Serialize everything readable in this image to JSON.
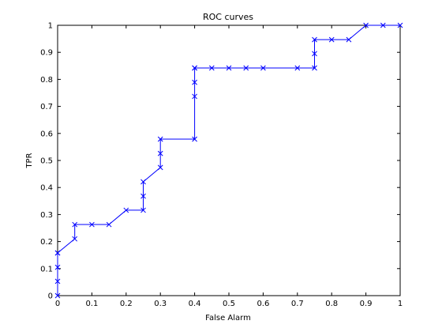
{
  "chart_data": {
    "type": "line",
    "title": "ROC curves",
    "xlabel": "False Alarm",
    "ylabel": "TPR",
    "xlim": [
      0,
      1
    ],
    "ylim": [
      0,
      1
    ],
    "grid": false,
    "x_ticks": [
      "0",
      "0.1",
      "0.2",
      "0.3",
      "0.4",
      "0.5",
      "0.6",
      "0.7",
      "0.8",
      "0.9",
      "1"
    ],
    "y_ticks": [
      "0",
      "0.1",
      "0.2",
      "0.3",
      "0.4",
      "0.5",
      "0.6",
      "0.7",
      "0.8",
      "0.9",
      "1"
    ],
    "series": [
      {
        "color": "#0000ff",
        "marker": "x",
        "x": [
          0,
          0,
          0,
          0,
          0,
          0.05,
          0.05,
          0.1,
          0.15,
          0.2,
          0.25,
          0.25,
          0.25,
          0.3,
          0.3,
          0.3,
          0.4,
          0.4,
          0.4,
          0.4,
          0.4,
          0.45,
          0.5,
          0.55,
          0.6,
          0.7,
          0.75,
          0.75,
          0.75,
          0.8,
          0.85,
          0.9,
          0.95,
          1
        ],
        "y": [
          0,
          0.053,
          0.105,
          0.158,
          0.158,
          0.21,
          0.263,
          0.263,
          0.263,
          0.316,
          0.316,
          0.368,
          0.421,
          0.474,
          0.526,
          0.579,
          0.579,
          0.737,
          0.789,
          0.842,
          0.842,
          0.842,
          0.842,
          0.842,
          0.842,
          0.842,
          0.842,
          0.895,
          0.947,
          0.947,
          0.947,
          1,
          1,
          1
        ]
      }
    ]
  }
}
